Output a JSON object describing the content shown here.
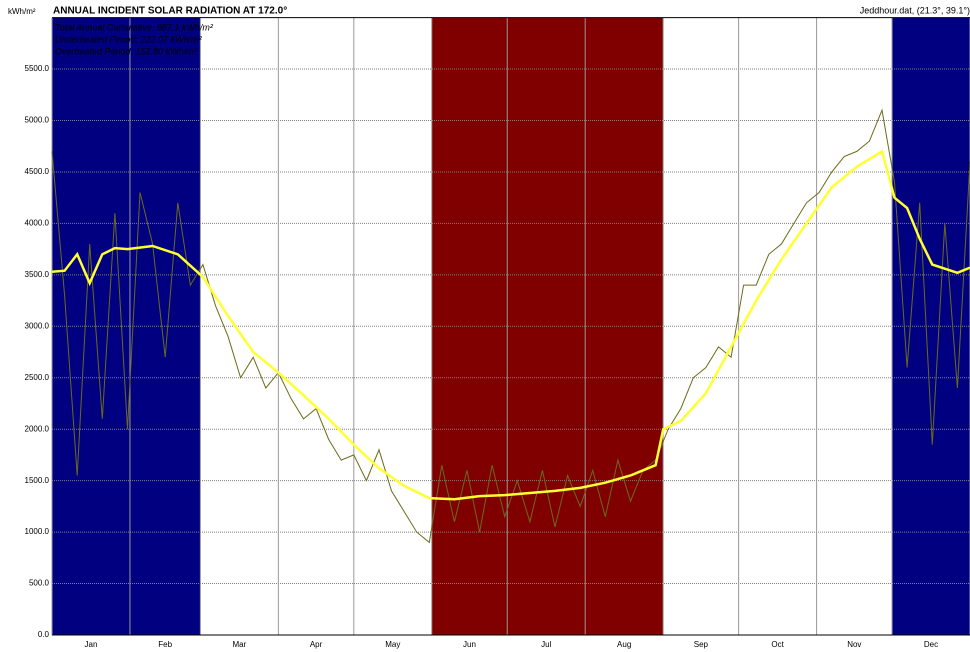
{
  "chart_data": {
    "type": "line",
    "title": "ANNUAL INCIDENT SOLAR RADIATION AT 172.0°",
    "y_label": "kWh/m²",
    "file_label": "Jeddhour.dat, (21.3°, 39.1°)",
    "legend_lines": [
      "Total Annual Cumulative: 987.1 kWh/m²",
      "Underheated Period: 222.07 kWh/m²",
      "Overheated Period: 152.80 kWh/m²"
    ],
    "categories": [
      "Jan",
      "Feb",
      "Mar",
      "Apr",
      "May",
      "Jun",
      "Jul",
      "Aug",
      "Sep",
      "Oct",
      "Nov",
      "Dec"
    ],
    "xlim": [
      0,
      365
    ],
    "xticks": [
      0,
      31,
      59,
      90,
      120,
      151,
      181,
      212,
      243,
      273,
      304,
      334,
      365
    ],
    "ylim": [
      0,
      6000
    ],
    "yticks": [
      {
        "value": 0,
        "label": "0.0"
      },
      {
        "value": 500,
        "label": "500.0"
      },
      {
        "value": 1000,
        "label": "1000.0"
      },
      {
        "value": 1500,
        "label": "1500.0"
      },
      {
        "value": 2000,
        "label": "2000.0"
      },
      {
        "value": 2500,
        "label": "2500.0"
      },
      {
        "value": 3000,
        "label": "3000.0"
      },
      {
        "value": 3500,
        "label": "3500.0"
      },
      {
        "value": 4000,
        "label": "4000.0"
      },
      {
        "value": 4500,
        "label": "4500.0"
      },
      {
        "value": 5000,
        "label": "5000.0"
      },
      {
        "value": 5500,
        "label": "5500.0"
      }
    ],
    "grid": true,
    "bands": [
      {
        "start": 0,
        "end": 59,
        "color": "#000080"
      },
      {
        "start": 151,
        "end": 243,
        "color": "#800000"
      },
      {
        "start": 334,
        "end": 365,
        "color": "#000080"
      }
    ],
    "series": [
      {
        "name": "Daily",
        "color": "#6b6b1a",
        "width": 1,
        "x": [
          0,
          5,
          10,
          15,
          20,
          25,
          30,
          35,
          40,
          45,
          50,
          55,
          60,
          65,
          70,
          75,
          80,
          85,
          90,
          95,
          100,
          105,
          110,
          115,
          120,
          125,
          130,
          135,
          140,
          145,
          150,
          155,
          160,
          165,
          170,
          175,
          180,
          185,
          190,
          195,
          200,
          205,
          210,
          215,
          220,
          225,
          230,
          235,
          240,
          245,
          250,
          255,
          260,
          265,
          270,
          275,
          280,
          285,
          290,
          295,
          300,
          305,
          310,
          315,
          320,
          325,
          330,
          335,
          340,
          345,
          350,
          355,
          360,
          365
        ],
        "values": [
          4700,
          3300,
          1550,
          3800,
          2100,
          4100,
          2000,
          4300,
          3800,
          2700,
          4200,
          3400,
          3600,
          3200,
          2900,
          2500,
          2700,
          2400,
          2550,
          2300,
          2100,
          2200,
          1900,
          1700,
          1750,
          1500,
          1800,
          1400,
          1200,
          1000,
          900,
          1650,
          1100,
          1600,
          1000,
          1650,
          1150,
          1500,
          1100,
          1600,
          1050,
          1550,
          1250,
          1600,
          1150,
          1700,
          1300,
          1600,
          1700,
          2000,
          2200,
          2500,
          2600,
          2800,
          2700,
          3400,
          3400,
          3700,
          3800,
          4000,
          4200,
          4300,
          4500,
          4650,
          4700,
          4800,
          5100,
          4400,
          2600,
          4200,
          1850,
          4000,
          2400,
          4600
        ]
      },
      {
        "name": "Average",
        "color": "#ffff33",
        "width": 2.5,
        "x": [
          0,
          5,
          10,
          15,
          20,
          25,
          30,
          40,
          50,
          60,
          70,
          80,
          90,
          100,
          110,
          120,
          130,
          140,
          150,
          160,
          170,
          180,
          190,
          200,
          210,
          220,
          230,
          240,
          243,
          250,
          260,
          270,
          280,
          290,
          300,
          310,
          320,
          330,
          335,
          340,
          345,
          350,
          355,
          360,
          365
        ],
        "values": [
          3530,
          3540,
          3700,
          3420,
          3700,
          3760,
          3750,
          3780,
          3700,
          3480,
          3100,
          2750,
          2550,
          2330,
          2100,
          1850,
          1620,
          1450,
          1330,
          1320,
          1350,
          1360,
          1380,
          1400,
          1430,
          1480,
          1550,
          1650,
          2000,
          2080,
          2350,
          2800,
          3250,
          3650,
          4000,
          4350,
          4550,
          4700,
          4250,
          4150,
          3850,
          3600,
          3560,
          3520,
          3570
        ]
      }
    ]
  }
}
